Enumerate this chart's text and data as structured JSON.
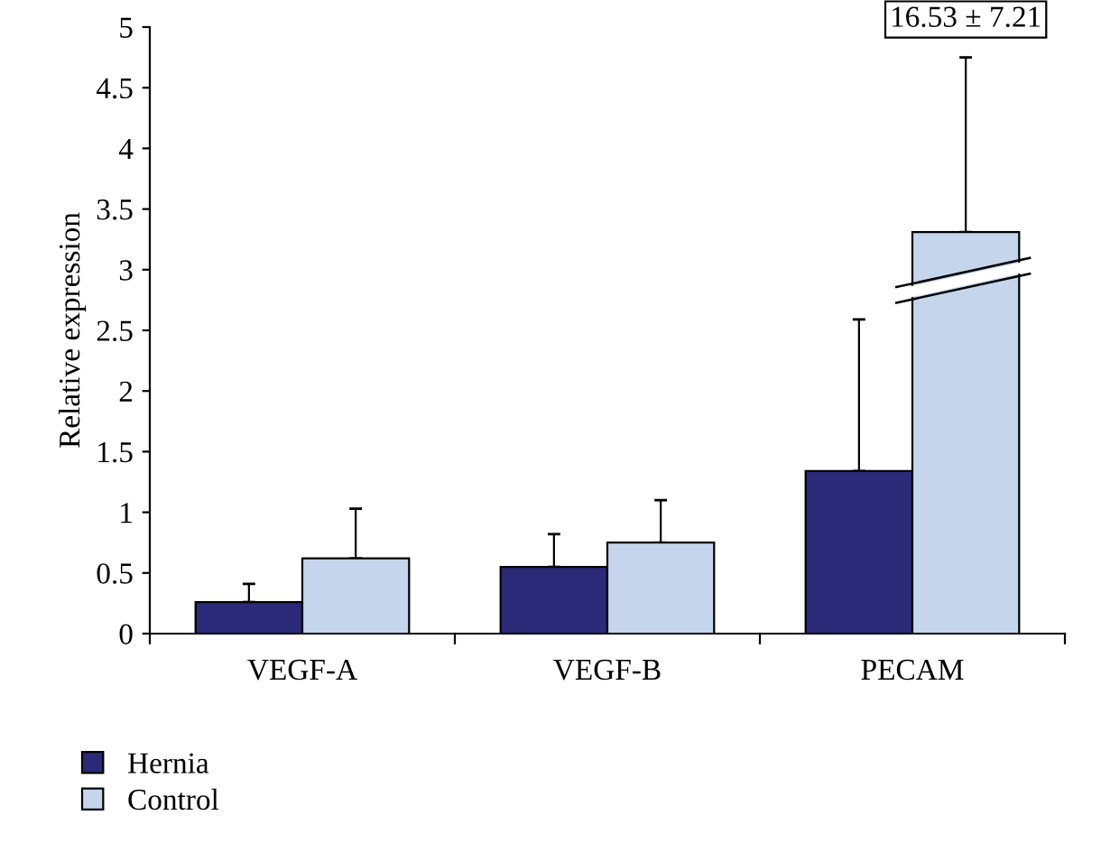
{
  "chart_data": {
    "type": "bar",
    "ylabel": "Relative expression",
    "categories": [
      "VEGF-A",
      "VEGF-B",
      "PECAM"
    ],
    "series": [
      {
        "name": "Hernia",
        "color": "#2a2a78",
        "values": [
          0.26,
          0.55,
          1.34
        ],
        "errors": [
          0.15,
          0.27,
          1.25
        ]
      },
      {
        "name": "Control",
        "color": "#c5d6ec",
        "values": [
          0.62,
          0.75,
          3.31
        ],
        "errors": [
          0.41,
          0.35,
          1.44
        ]
      }
    ],
    "ylim": [
      0,
      5
    ],
    "yticks": [
      0,
      0.5,
      1,
      1.5,
      2,
      2.5,
      3,
      3.5,
      4,
      4.5,
      5
    ],
    "annotations": [
      "16.53 ± 7.21"
    ],
    "grid": false,
    "legend": "bottom left"
  }
}
